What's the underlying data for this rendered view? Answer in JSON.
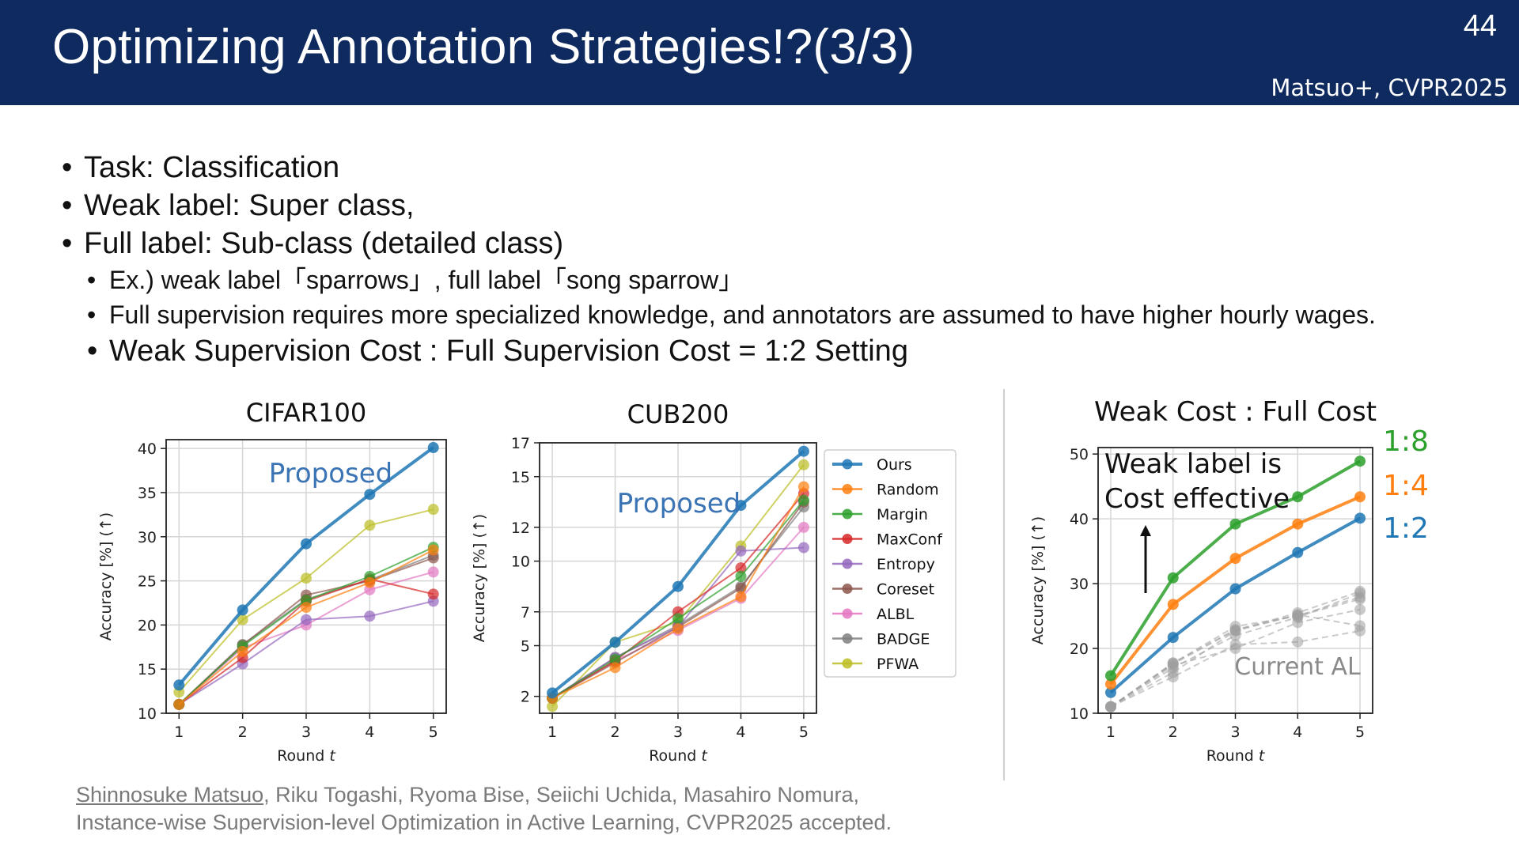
{
  "slide": {
    "title": "Optimizing Annotation Strategies!?(3/3)",
    "page_number": "44",
    "citation": "Matsuo+, CVPR2025"
  },
  "bullets": {
    "b1": "Task: Classification",
    "b2": "Weak label: Super class,",
    "b3": "Full label: Sub-class (detailed class)",
    "s1": "Ex.) weak label「sparrows」, full label「song sparrow」",
    "s2": "Full supervision requires more specialized knowledge, and annotators are assumed to have higher hourly wages.",
    "s3": "Weak Supervision Cost : Full Supervision Cost = 1:2 Setting"
  },
  "reference": {
    "author_link": "Shinnosuke Matsuo",
    "authors_rest": ", Riku Togashi, Ryoma Bise, Seiichi Uchida, Masahiro Nomura,",
    "paper": "Instance-wise Supervision-level Optimization in Active Learning, CVPR2025 accepted."
  },
  "colors": {
    "header_bg": "#0e2a5f",
    "Ours": "#1f77b4",
    "Random": "#ff7f0e",
    "Margin": "#2ca02c",
    "MaxConf": "#d62728",
    "Entropy": "#9467bd",
    "Coreset": "#8c564b",
    "ALBL": "#e377c2",
    "BADGE": "#7f7f7f",
    "PFWA": "#bcbd22",
    "ratio_1_8": "#2ca02c",
    "ratio_1_4": "#ff7f0e",
    "ratio_1_2": "#1f77b4",
    "current_al": "#9e9e9e"
  },
  "legend": [
    "Ours",
    "Random",
    "Margin",
    "MaxConf",
    "Entropy",
    "Coreset",
    "ALBL",
    "BADGE",
    "PFWA"
  ],
  "chart_data": [
    {
      "type": "line",
      "title": "CIFAR100",
      "xlabel": "Round t",
      "ylabel": "Accuracy [%] (↑)",
      "x": [
        1,
        2,
        3,
        4,
        5
      ],
      "ylim": [
        10,
        41
      ],
      "yticks": [
        10,
        15,
        20,
        25,
        30,
        35,
        40
      ],
      "grid": true,
      "annotation": "Proposed",
      "series": [
        {
          "name": "Ours",
          "values": [
            13.2,
            21.7,
            29.2,
            34.8,
            40.1
          ]
        },
        {
          "name": "Random",
          "values": [
            11.0,
            17.0,
            22.0,
            24.8,
            28.5
          ]
        },
        {
          "name": "Margin",
          "values": [
            11.0,
            17.6,
            22.8,
            25.5,
            28.8
          ]
        },
        {
          "name": "MaxConf",
          "values": [
            11.0,
            16.3,
            22.7,
            25.2,
            23.5
          ]
        },
        {
          "name": "Entropy",
          "values": [
            11.0,
            15.6,
            20.6,
            21.0,
            22.7
          ]
        },
        {
          "name": "Coreset",
          "values": [
            11.0,
            17.7,
            23.4,
            25.0,
            27.6
          ]
        },
        {
          "name": "ALBL",
          "values": [
            11.0,
            17.4,
            20.0,
            24.0,
            26.0
          ]
        },
        {
          "name": "BADGE",
          "values": [
            11.0,
            17.8,
            22.9,
            25.1,
            27.9
          ]
        },
        {
          "name": "PFWA",
          "values": [
            12.4,
            20.6,
            25.3,
            31.3,
            33.1
          ]
        }
      ]
    },
    {
      "type": "line",
      "title": "CUB200",
      "xlabel": "Round t",
      "ylabel": "Accuracy [%] (↑)",
      "x": [
        1,
        2,
        3,
        4,
        5
      ],
      "ylim": [
        1,
        17
      ],
      "yticks": [
        2,
        5,
        7,
        10,
        12,
        15,
        17
      ],
      "grid": true,
      "legend_position": "right",
      "annotation": "Proposed",
      "series": [
        {
          "name": "Ours",
          "values": [
            2.2,
            5.2,
            8.5,
            13.3,
            16.5
          ]
        },
        {
          "name": "Random",
          "values": [
            1.9,
            3.7,
            6.0,
            7.9,
            14.4
          ]
        },
        {
          "name": "Margin",
          "values": [
            1.9,
            4.2,
            6.6,
            9.1,
            13.6
          ]
        },
        {
          "name": "MaxConf",
          "values": [
            1.9,
            4.1,
            7.0,
            9.6,
            14.0
          ]
        },
        {
          "name": "Entropy",
          "values": [
            1.9,
            4.3,
            6.1,
            10.6,
            10.8
          ]
        },
        {
          "name": "Coreset",
          "values": [
            1.9,
            4.0,
            6.1,
            8.4,
            13.5
          ]
        },
        {
          "name": "ALBL",
          "values": [
            1.9,
            4.1,
            5.9,
            7.8,
            12.0
          ]
        },
        {
          "name": "BADGE",
          "values": [
            1.9,
            4.3,
            6.2,
            8.5,
            13.2
          ]
        },
        {
          "name": "PFWA",
          "values": [
            1.4,
            5.2,
            6.4,
            10.9,
            15.7
          ]
        }
      ]
    },
    {
      "type": "line",
      "title": "Weak Cost : Full Cost",
      "xlabel": "Round t",
      "ylabel": "Accuracy [%] (↑)",
      "x": [
        1,
        2,
        3,
        4,
        5
      ],
      "ylim": [
        10,
        51
      ],
      "yticks": [
        10,
        20,
        30,
        40,
        50
      ],
      "grid": true,
      "annotations": [
        "Weak label is",
        "Cost effective",
        "Current AL"
      ],
      "series": [
        {
          "name": "1:8",
          "values": [
            15.8,
            30.9,
            39.2,
            43.4,
            48.9
          ]
        },
        {
          "name": "1:4",
          "values": [
            14.5,
            26.8,
            33.9,
            39.2,
            43.4
          ]
        },
        {
          "name": "1:2",
          "values": [
            13.2,
            21.7,
            29.2,
            34.8,
            40.1
          ]
        }
      ],
      "baseline_series": [
        [
          11.0,
          17.0,
          22.0,
          24.8,
          28.5
        ],
        [
          11.0,
          17.6,
          22.8,
          25.5,
          28.8
        ],
        [
          11.0,
          16.3,
          22.7,
          25.2,
          23.5
        ],
        [
          11.0,
          15.6,
          20.6,
          21.0,
          22.7
        ],
        [
          11.0,
          17.7,
          23.4,
          25.0,
          27.6
        ],
        [
          11.0,
          17.4,
          20.0,
          24.0,
          26.0
        ],
        [
          11.0,
          17.8,
          22.9,
          25.1,
          27.9
        ]
      ]
    }
  ]
}
